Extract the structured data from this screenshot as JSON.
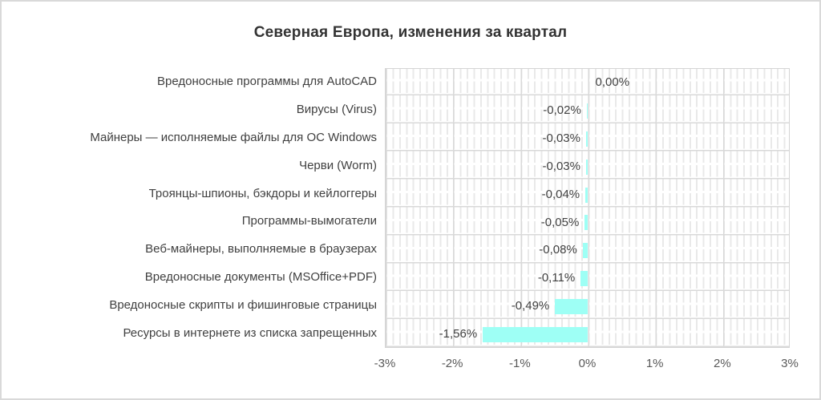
{
  "chart_data": {
    "type": "bar",
    "orientation": "horizontal",
    "title": "Северная Европа, изменения за квартал",
    "categories": [
      "Вредоносные программы для AutoCAD",
      "Вирусы (Virus)",
      "Майнеры — исполняемые файлы для ОС Windows",
      "Черви (Worm)",
      "Троянцы-шпионы, бэкдоры и кейлоггеры",
      "Программы-вымогатели",
      "Веб-майнеры, выполняемые в браузерах",
      "Вредоносные документы (MSOffice+PDF)",
      "Вредоносные скрипты и фишинговые страницы",
      "Ресурсы в интернете из списка запрещенных"
    ],
    "values": [
      0.0,
      -0.02,
      -0.03,
      -0.03,
      -0.04,
      -0.05,
      -0.08,
      -0.11,
      -0.49,
      -1.56
    ],
    "value_labels": [
      "0,00%",
      "-0,02%",
      "-0,03%",
      "-0,03%",
      "-0,04%",
      "-0,05%",
      "-0,08%",
      "-0,11%",
      "-0,49%",
      "-1,56%"
    ],
    "x_ticks": [
      "-3%",
      "-2%",
      "-1%",
      "0%",
      "1%",
      "2%",
      "3%"
    ],
    "x_tick_values": [
      -3,
      -2,
      -1,
      0,
      1,
      2,
      3
    ],
    "xlim": [
      -3,
      3
    ],
    "ylabel": "",
    "xlabel": "",
    "legend": "none",
    "grid": "major+minor",
    "bar_color": "#9EFFF5",
    "label_color": "#404040",
    "title_color": "#333333",
    "gridline_major_color": "#d9d9d9",
    "gridline_minor_color": "#e9e9e9"
  }
}
